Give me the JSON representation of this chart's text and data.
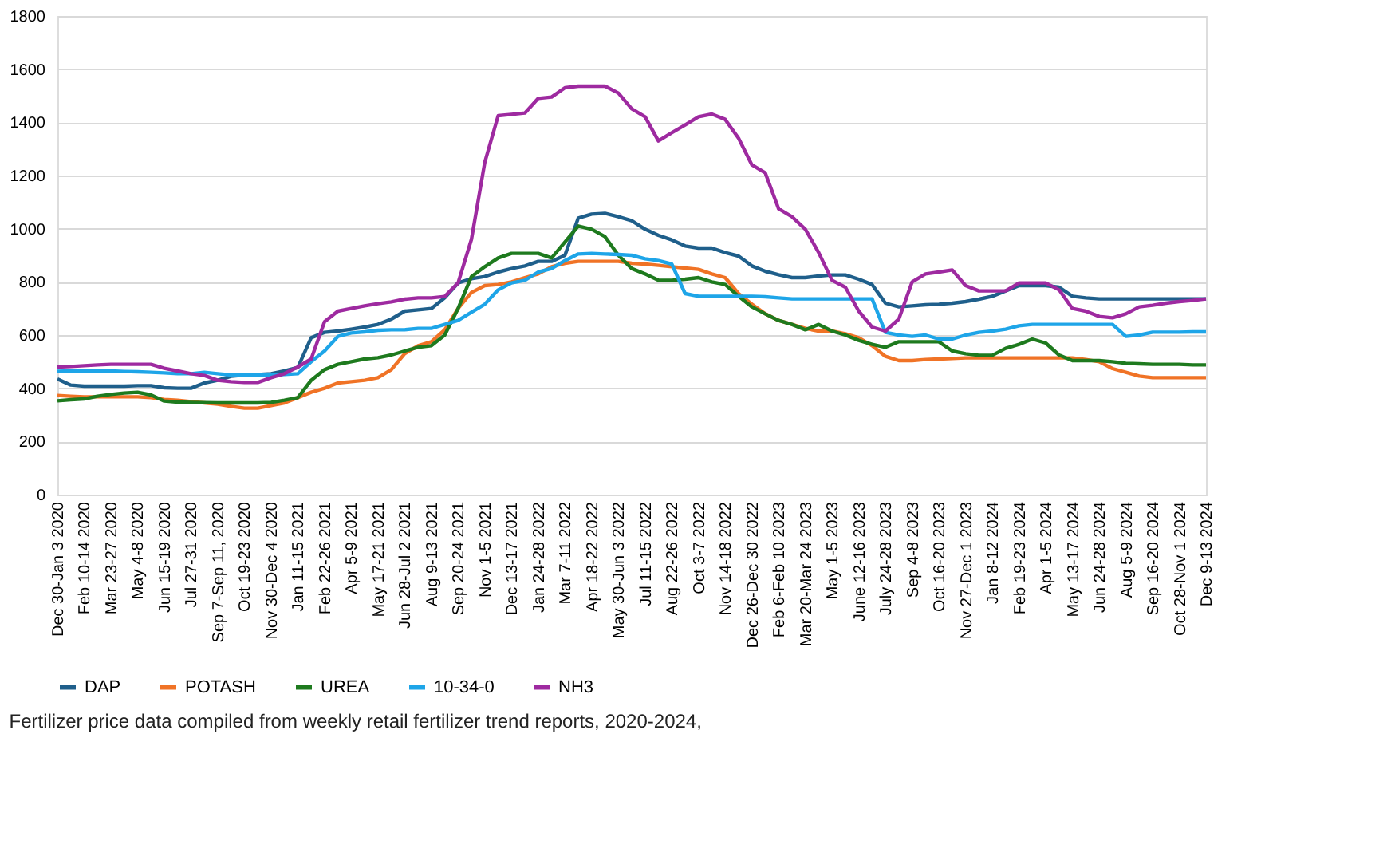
{
  "chart_data": {
    "type": "line",
    "categories": [
      "Dec 30-Jan 3 2020",
      null,
      "Feb 10-14 2020",
      null,
      "Mar 23-27 2020",
      null,
      "May 4-8 2020",
      null,
      "Jun 15-19 2020",
      null,
      "Jul 27-31 2020",
      null,
      "Sep 7-Sep 11, 2020",
      null,
      "Oct 19-23 2020",
      null,
      "Nov 30-Dec 4 2020",
      null,
      "Jan 11-15 2021",
      null,
      "Feb 22-26 2021",
      null,
      "Apr 5-9 2021",
      null,
      "May 17-21 2021",
      null,
      "Jun 28-Jul 2 2021",
      null,
      "Aug 9-13 2021",
      null,
      "Sep 20-24 2021",
      null,
      "Nov 1-5 2021",
      null,
      "Dec 13-17 2021",
      null,
      "Jan 24-28 2022",
      null,
      "Mar 7-11 2022",
      null,
      "Apr 18-22 2022",
      null,
      "May 30-Jun 3 2022",
      null,
      "Jul 11-15 2022",
      null,
      "Aug 22-26 2022",
      null,
      "Oct 3-7 2022",
      null,
      "Nov 14-18 2022",
      null,
      "Dec 26-Dec 30 2022",
      null,
      "Feb 6-Feb 10 2023",
      null,
      "Mar 20-Mar 24 2023",
      null,
      "May 1-5 2023",
      null,
      "June 12-16 2023",
      null,
      "July 24-28 2023",
      null,
      "Sep 4-8 2023",
      null,
      "Oct 16-20 2023",
      null,
      "Nov 27-Dec 1 2023",
      null,
      "Jan 8-12 2024",
      null,
      "Feb 19-23 2024",
      null,
      "Apr 1-5 2024",
      null,
      "May 13-17 2024",
      null,
      "Jun 24-28 2024",
      null,
      "Aug 5-9 2024",
      null,
      "Sep 16-20 2024",
      null,
      "Oct 28-Nov 1 2024",
      null,
      "Dec 9-13 2024"
    ],
    "series": [
      {
        "name": "DAP",
        "color": "#1f5f8b",
        "values": [
          435,
          412,
          408,
          408,
          408,
          408,
          410,
          410,
          402,
          400,
          400,
          420,
          430,
          445,
          450,
          452,
          455,
          465,
          478,
          590,
          610,
          615,
          622,
          630,
          640,
          660,
          690,
          695,
          700,
          740,
          796,
          812,
          820,
          837,
          850,
          860,
          877,
          877,
          900,
          1040,
          1055,
          1058,
          1045,
          1030,
          998,
          975,
          958,
          935,
          927,
          927,
          910,
          897,
          860,
          840,
          827,
          816,
          816,
          822,
          826,
          826,
          810,
          790,
          720,
          706,
          710,
          714,
          716,
          720,
          726,
          735,
          746,
          766,
          786,
          786,
          786,
          780,
          746,
          740,
          736,
          736,
          736,
          736,
          736,
          736,
          736,
          736,
          736
        ]
      },
      {
        "name": "POTASH",
        "color": "#f07326",
        "values": [
          373,
          370,
          368,
          368,
          368,
          368,
          368,
          365,
          358,
          355,
          350,
          345,
          340,
          332,
          325,
          325,
          335,
          345,
          365,
          385,
          400,
          420,
          425,
          430,
          440,
          470,
          530,
          560,
          575,
          620,
          700,
          760,
          786,
          790,
          800,
          816,
          830,
          857,
          870,
          877,
          877,
          877,
          877,
          870,
          867,
          862,
          857,
          852,
          847,
          830,
          816,
          756,
          716,
          680,
          655,
          640,
          625,
          615,
          615,
          605,
          590,
          560,
          520,
          504,
          504,
          508,
          510,
          512,
          514,
          514,
          514,
          514,
          514,
          514,
          514,
          514,
          514,
          508,
          500,
          474,
          460,
          446,
          440,
          440,
          440,
          440,
          440
        ]
      },
      {
        "name": "UREA",
        "color": "#1e7a1e",
        "values": [
          353,
          357,
          360,
          370,
          377,
          382,
          385,
          375,
          352,
          348,
          347,
          346,
          345,
          345,
          345,
          345,
          347,
          355,
          365,
          430,
          470,
          490,
          500,
          510,
          515,
          525,
          540,
          554,
          560,
          600,
          700,
          820,
          857,
          890,
          907,
          907,
          907,
          890,
          950,
          1010,
          998,
          970,
          900,
          850,
          830,
          806,
          806,
          810,
          816,
          800,
          790,
          746,
          706,
          680,
          655,
          640,
          620,
          640,
          615,
          600,
          580,
          565,
          554,
          575,
          575,
          575,
          575,
          540,
          530,
          524,
          524,
          550,
          565,
          585,
          570,
          525,
          504,
          504,
          504,
          500,
          494,
          492,
          490,
          490,
          490,
          488,
          488
        ]
      },
      {
        "name": "10-34-0",
        "color": "#1ea5e8",
        "values": [
          464,
          465,
          465,
          465,
          465,
          463,
          462,
          460,
          458,
          455,
          455,
          460,
          455,
          450,
          450,
          450,
          450,
          452,
          455,
          500,
          540,
          595,
          608,
          612,
          618,
          620,
          620,
          625,
          625,
          640,
          655,
          686,
          716,
          770,
          796,
          806,
          837,
          850,
          880,
          905,
          907,
          905,
          903,
          900,
          887,
          880,
          867,
          756,
          746,
          746,
          746,
          746,
          746,
          744,
          740,
          736,
          736,
          736,
          736,
          736,
          736,
          736,
          610,
          600,
          595,
          600,
          585,
          585,
          600,
          610,
          615,
          622,
          635,
          640,
          640,
          640,
          640,
          640,
          640,
          640,
          595,
          600,
          611,
          611,
          611,
          612,
          612
        ]
      },
      {
        "name": "NH3",
        "color": "#9e2aa0",
        "values": [
          480,
          482,
          485,
          488,
          490,
          490,
          490,
          490,
          475,
          465,
          455,
          448,
          430,
          425,
          422,
          422,
          440,
          455,
          480,
          510,
          650,
          690,
          700,
          710,
          718,
          725,
          735,
          740,
          740,
          745,
          796,
          960,
          1250,
          1425,
          1430,
          1435,
          1490,
          1495,
          1530,
          1536,
          1536,
          1536,
          1510,
          1451,
          1421,
          1330,
          1361,
          1390,
          1421,
          1431,
          1411,
          1340,
          1240,
          1210,
          1075,
          1045,
          998,
          910,
          806,
          780,
          690,
          630,
          615,
          660,
          800,
          830,
          837,
          845,
          786,
          766,
          766,
          766,
          796,
          796,
          796,
          770,
          700,
          690,
          670,
          665,
          680,
          706,
          712,
          720,
          726,
          730,
          736
        ]
      }
    ],
    "ylim": [
      0,
      1800
    ],
    "yticks": [
      0,
      200,
      400,
      600,
      800,
      1000,
      1200,
      1400,
      1600,
      1800
    ],
    "grid": "y",
    "legend": "bottom",
    "line_style": "solid",
    "marker": "none",
    "annotations": [
      "Fertilizer price data compiled from weekly retail fertilizer trend reports, 2020-2024,"
    ]
  }
}
